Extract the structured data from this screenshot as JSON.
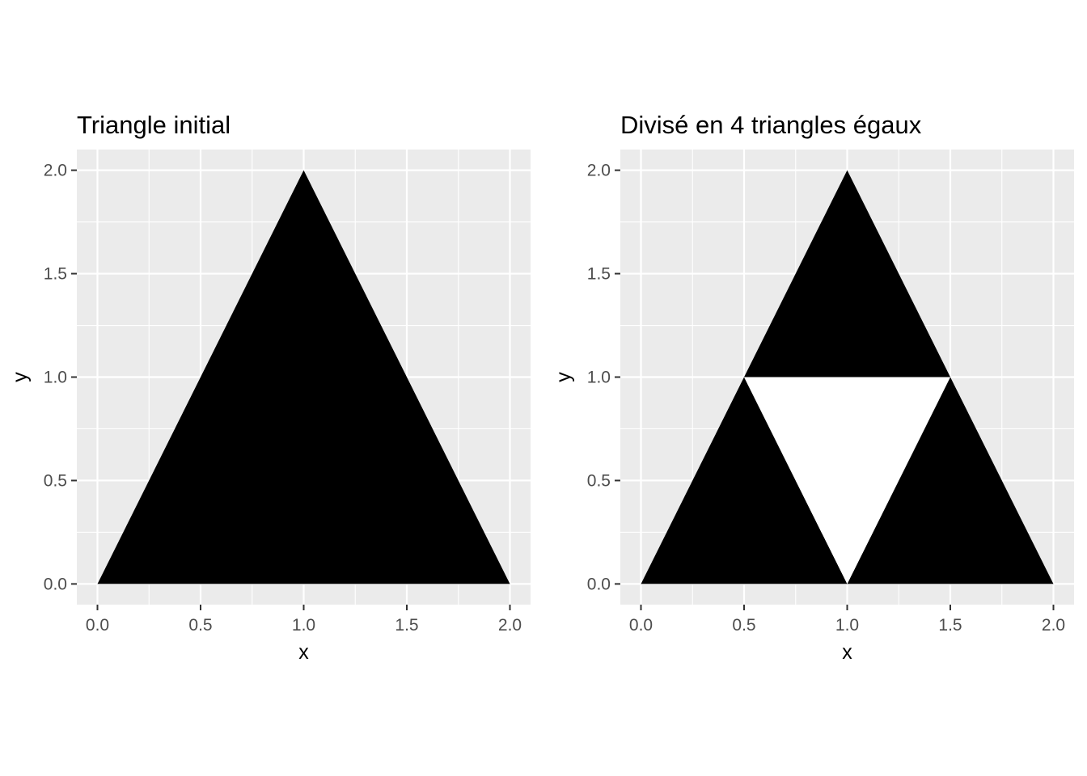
{
  "chart_data": [
    {
      "type": "polygon",
      "title": "Triangle initial",
      "xlabel": "x",
      "ylabel": "y",
      "xlim": [
        -0.1,
        2.1
      ],
      "ylim": [
        -0.1,
        2.1
      ],
      "xticks": [
        0.0,
        0.5,
        1.0,
        1.5,
        2.0
      ],
      "yticks": [
        0.0,
        0.5,
        1.0,
        1.5,
        2.0
      ],
      "xtick_labels": [
        "0.0",
        "0.5",
        "1.0",
        "1.5",
        "2.0"
      ],
      "ytick_labels": [
        "0.0",
        "0.5",
        "1.0",
        "1.5",
        "2.0"
      ],
      "grid": true,
      "colors": {
        "panel": "#ebebeb",
        "grid": "#ffffff",
        "fill": "#000000"
      },
      "polygons": [
        {
          "fill": "#000000",
          "points": [
            [
              0,
              0
            ],
            [
              1,
              2
            ],
            [
              2,
              0
            ]
          ]
        }
      ]
    },
    {
      "type": "polygon",
      "title": "Divisé en 4 triangles égaux",
      "xlabel": "x",
      "ylabel": "y",
      "xlim": [
        -0.1,
        2.1
      ],
      "ylim": [
        -0.1,
        2.1
      ],
      "xticks": [
        0.0,
        0.5,
        1.0,
        1.5,
        2.0
      ],
      "yticks": [
        0.0,
        0.5,
        1.0,
        1.5,
        2.0
      ],
      "xtick_labels": [
        "0.0",
        "0.5",
        "1.0",
        "1.5",
        "2.0"
      ],
      "ytick_labels": [
        "0.0",
        "0.5",
        "1.0",
        "1.5",
        "2.0"
      ],
      "grid": true,
      "colors": {
        "panel": "#ebebeb",
        "grid": "#ffffff",
        "fill": "#000000"
      },
      "polygons": [
        {
          "fill": "#000000",
          "points": [
            [
              0,
              0
            ],
            [
              0.5,
              1
            ],
            [
              1,
              0
            ]
          ]
        },
        {
          "fill": "#000000",
          "points": [
            [
              1,
              0
            ],
            [
              1.5,
              1
            ],
            [
              2,
              0
            ]
          ]
        },
        {
          "fill": "#000000",
          "points": [
            [
              0.5,
              1
            ],
            [
              1,
              2
            ],
            [
              1.5,
              1
            ]
          ]
        },
        {
          "fill": "#ffffff",
          "points": [
            [
              0.5,
              1
            ],
            [
              1,
              0
            ],
            [
              1.5,
              1
            ]
          ]
        }
      ]
    }
  ]
}
